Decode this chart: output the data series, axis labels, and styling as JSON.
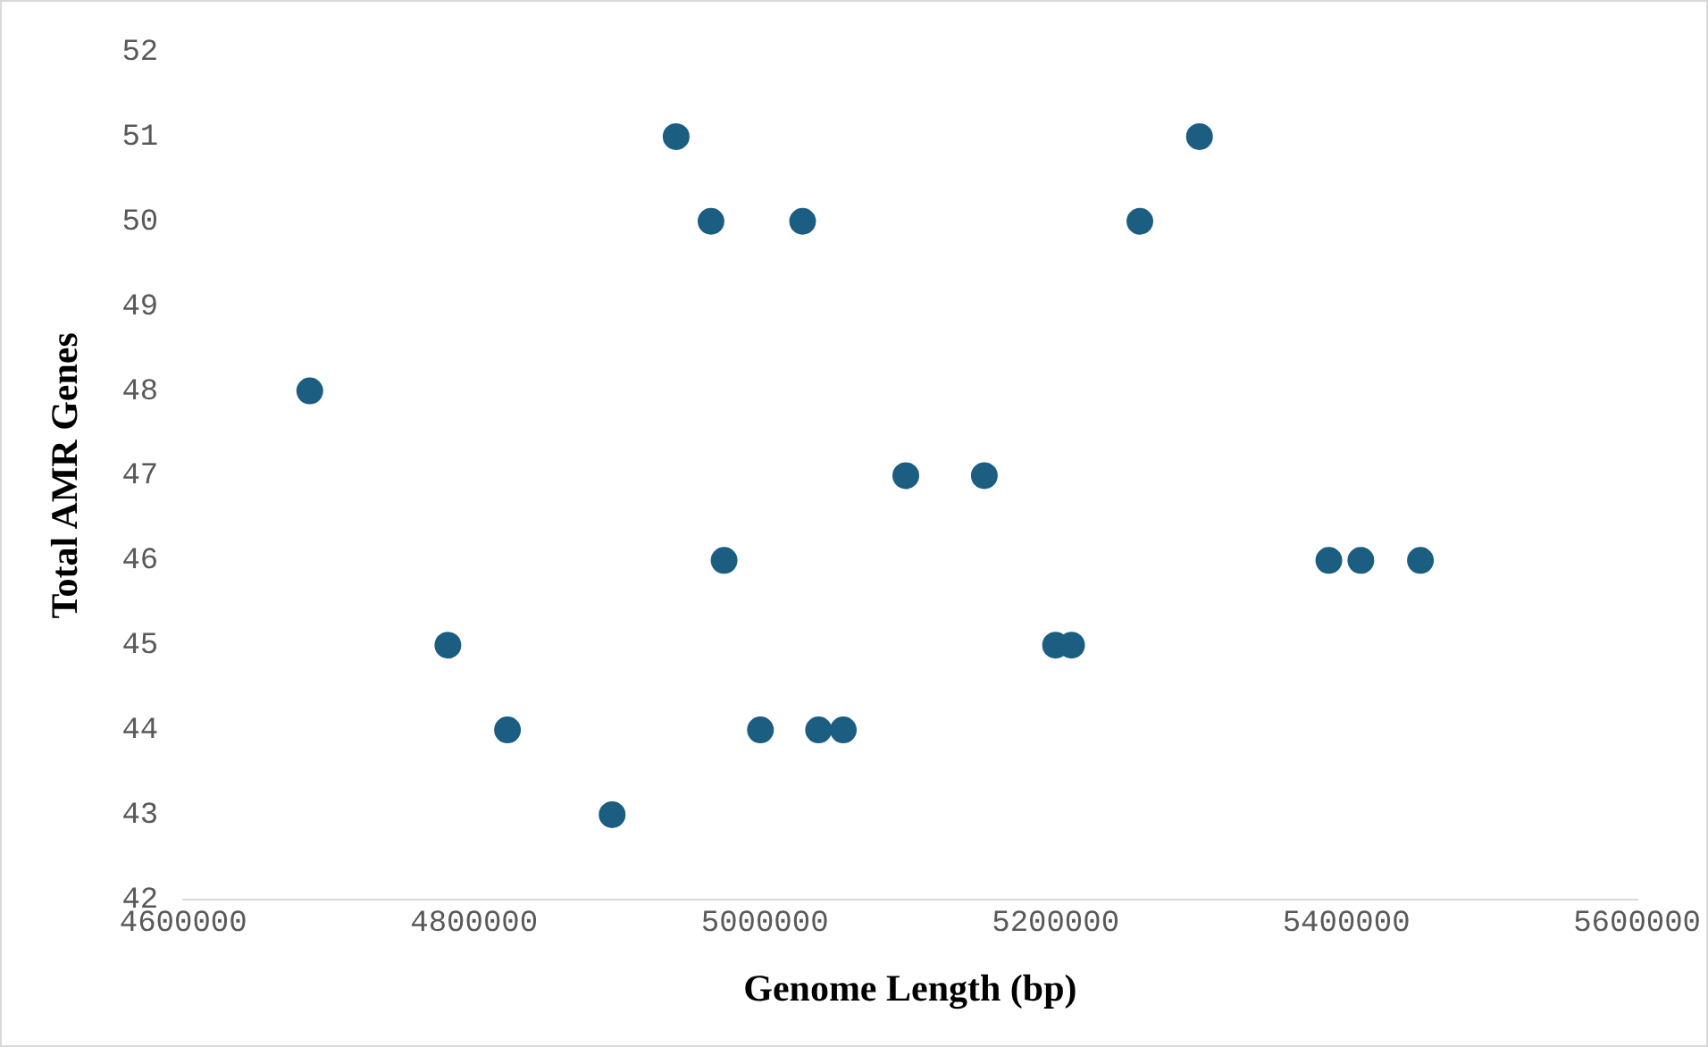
{
  "chart_data": {
    "type": "scatter",
    "xlabel": "Genome Length (bp)",
    "ylabel": "Total AMR Genes",
    "x": [
      4687000,
      4782000,
      4823000,
      4895000,
      4939000,
      4963000,
      4972000,
      4997000,
      5026000,
      5037000,
      5054000,
      5097000,
      5151000,
      5200000,
      5211000,
      5258000,
      5299000,
      5388000,
      5410000,
      5451000
    ],
    "values": [
      48,
      45,
      44,
      43,
      51,
      50,
      46,
      44,
      50,
      44,
      44,
      47,
      47,
      45,
      45,
      50,
      51,
      46,
      46,
      46
    ],
    "color": "#1b5e82",
    "marker": "circle",
    "xlim": [
      4600000,
      5600000
    ],
    "xticks": [
      4600000,
      4800000,
      5000000,
      5200000,
      5400000,
      5600000
    ],
    "ylim": [
      42,
      52
    ],
    "yticks": [
      42,
      43,
      44,
      45,
      46,
      47,
      48,
      49,
      50,
      51,
      52
    ],
    "grid": false,
    "legend": false
  }
}
